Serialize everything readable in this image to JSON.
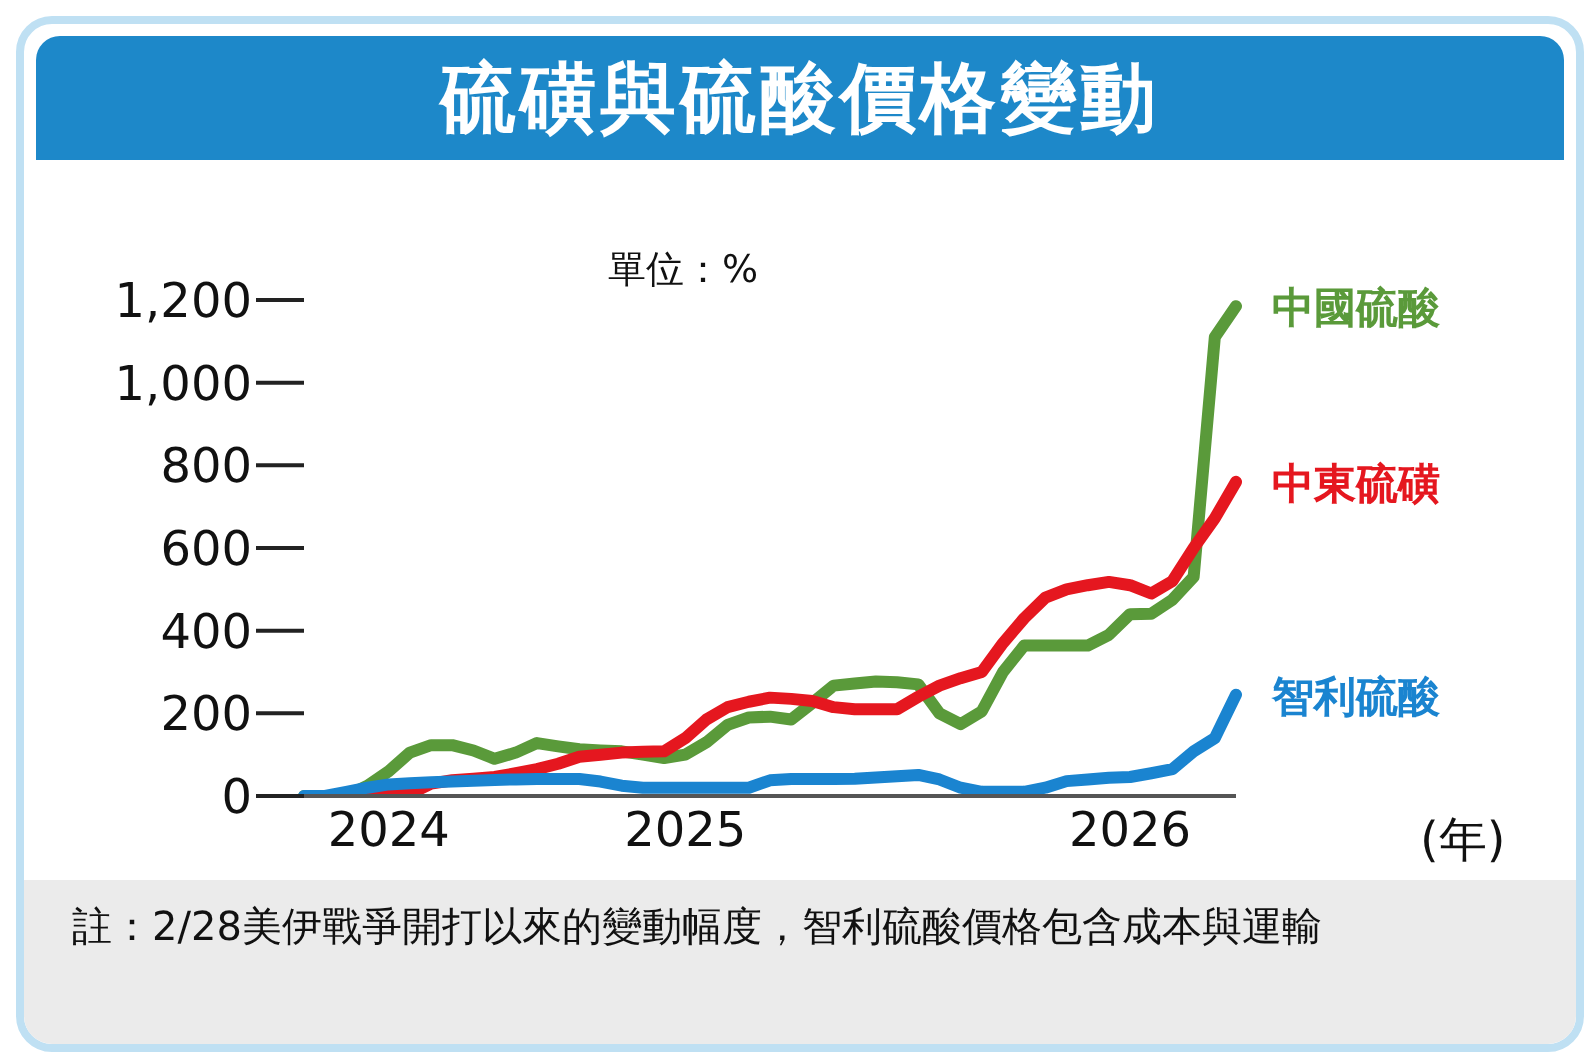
{
  "chart_data": {
    "type": "line",
    "title": "硫磺與硫酸價格變動",
    "ylabel": "單位：%",
    "xlabel": "(年)",
    "categories": [
      null,
      null,
      null,
      null,
      "2024",
      null,
      null,
      null,
      null,
      null,
      null,
      null,
      null,
      null,
      null,
      null,
      null,
      null,
      "2025",
      null,
      null,
      null,
      null,
      null,
      null,
      null,
      null,
      null,
      null,
      null,
      null,
      null,
      null,
      null,
      null,
      null,
      null,
      null,
      null,
      "2026",
      null,
      null,
      null,
      null,
      null
    ],
    "series": [
      {
        "name": "中國硫酸",
        "color": "#5a9a3a",
        "values": [
          0,
          0,
          0,
          25,
          60,
          105,
          123,
          123,
          110,
          90,
          105,
          128,
          120,
          113,
          110,
          108,
          100,
          92,
          100,
          130,
          172,
          190,
          192,
          185,
          225,
          267,
          272,
          277,
          275,
          270,
          200,
          174,
          205,
          300,
          364,
          364,
          364,
          364,
          390,
          440,
          441,
          475,
          530,
          1110,
          1185
        ]
      },
      {
        "name": "中東硫磺",
        "color": "#e5171f",
        "values": [
          null,
          null,
          0,
          0,
          0,
          5,
          30,
          38,
          42,
          46,
          55,
          65,
          78,
          95,
          100,
          105,
          107,
          108,
          140,
          185,
          215,
          228,
          238,
          235,
          230,
          215,
          210,
          210,
          210,
          240,
          267,
          285,
          300,
          370,
          430,
          480,
          500,
          510,
          518,
          510,
          490,
          520,
          600,
          672,
          760
        ]
      },
      {
        "name": "智利硫酸",
        "color": "#1a84d0",
        "values": [
          0,
          0,
          10,
          20,
          28,
          31,
          33,
          35,
          37,
          39,
          40,
          41,
          41,
          41,
          35,
          25,
          20,
          20,
          20,
          20,
          20,
          20,
          38,
          41,
          41,
          41,
          42,
          45,
          48,
          51,
          40,
          20,
          10,
          10,
          10,
          20,
          36,
          40,
          44,
          46,
          55,
          65,
          108,
          140,
          245
        ]
      }
    ],
    "ylim": [
      0,
      1200
    ],
    "yticks": [
      0,
      {
        "value": 200,
        "label": "200"
      },
      {
        "value": 400,
        "label": "400"
      },
      {
        "value": 600,
        "label": "600"
      },
      {
        "value": 800,
        "label": "800"
      },
      {
        "value": 1000,
        "label": "1,000"
      },
      {
        "value": 1200,
        "label": "1,200"
      }
    ],
    "grid": false,
    "legend": false,
    "marker": "none",
    "line_style": "solid",
    "annotations": [
      "註：2/28美伊戰爭開打以來的變動幅度，智利硫酸價格包含成本與運輸"
    ]
  }
}
